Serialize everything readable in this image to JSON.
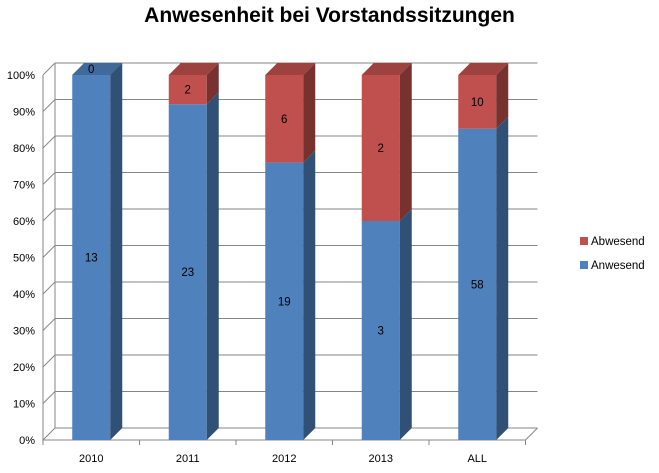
{
  "chart_data": {
    "type": "bar",
    "stacked": true,
    "percent_stacked": true,
    "three_d": true,
    "title": "Anwesenheit bei Vorstandssitzungen",
    "categories": [
      "2010",
      "2011",
      "2012",
      "2013",
      "ALL"
    ],
    "series": [
      {
        "name": "Anwesend",
        "color": "#4f81bd",
        "values": [
          13,
          23,
          19,
          3,
          58
        ],
        "labels": [
          "13",
          "23",
          "19",
          "3",
          "58"
        ]
      },
      {
        "name": "Abwesend",
        "color": "#c0504d",
        "values": [
          0,
          2,
          6,
          2,
          10
        ],
        "labels": [
          "0",
          "2",
          "6",
          "2",
          "10"
        ]
      }
    ],
    "y_ticks": [
      "0%",
      "10%",
      "20%",
      "30%",
      "40%",
      "50%",
      "60%",
      "70%",
      "80%",
      "90%",
      "100%"
    ],
    "ylim": [
      0,
      100
    ],
    "grid": true,
    "legend_position": "right"
  }
}
